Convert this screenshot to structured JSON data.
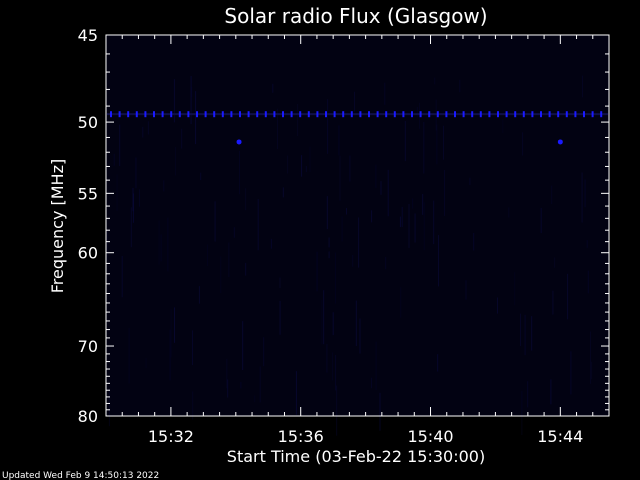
{
  "chart_data": {
    "type": "heatmap",
    "title": "Solar radio Flux (Glasgow)",
    "xlabel": "Start Time (03-Feb-22 15:30:00)",
    "ylabel": "Frequency [MHz]",
    "x_range_minutes": [
      0,
      15.5
    ],
    "x_ticks": [
      {
        "minute": 2,
        "label": "15:32"
      },
      {
        "minute": 6,
        "label": "15:36"
      },
      {
        "minute": 10,
        "label": "15:40"
      },
      {
        "minute": 14,
        "label": "15:44"
      }
    ],
    "y_axis": "reciprocal",
    "ylim": [
      45,
      80
    ],
    "y_ticks": [
      45,
      50,
      55,
      60,
      70,
      80
    ],
    "grid": false,
    "legend": "none",
    "colors": {
      "background": "#000000",
      "plot_background": "#020212",
      "foreground": "#ffffff",
      "signal": "#1a1aff",
      "faint_signal": "#0c0c4a"
    },
    "features": [
      {
        "kind": "interference-band",
        "frequency_mhz": 49.5,
        "intensity": "moderate"
      },
      {
        "kind": "burst-dot",
        "minute": 4.1,
        "frequency_mhz": 51.3
      },
      {
        "kind": "burst-dot",
        "minute": 14.0,
        "frequency_mhz": 51.3
      }
    ]
  },
  "footer": {
    "updated": "Updated Wed Feb  9 14:50:13 2022"
  }
}
